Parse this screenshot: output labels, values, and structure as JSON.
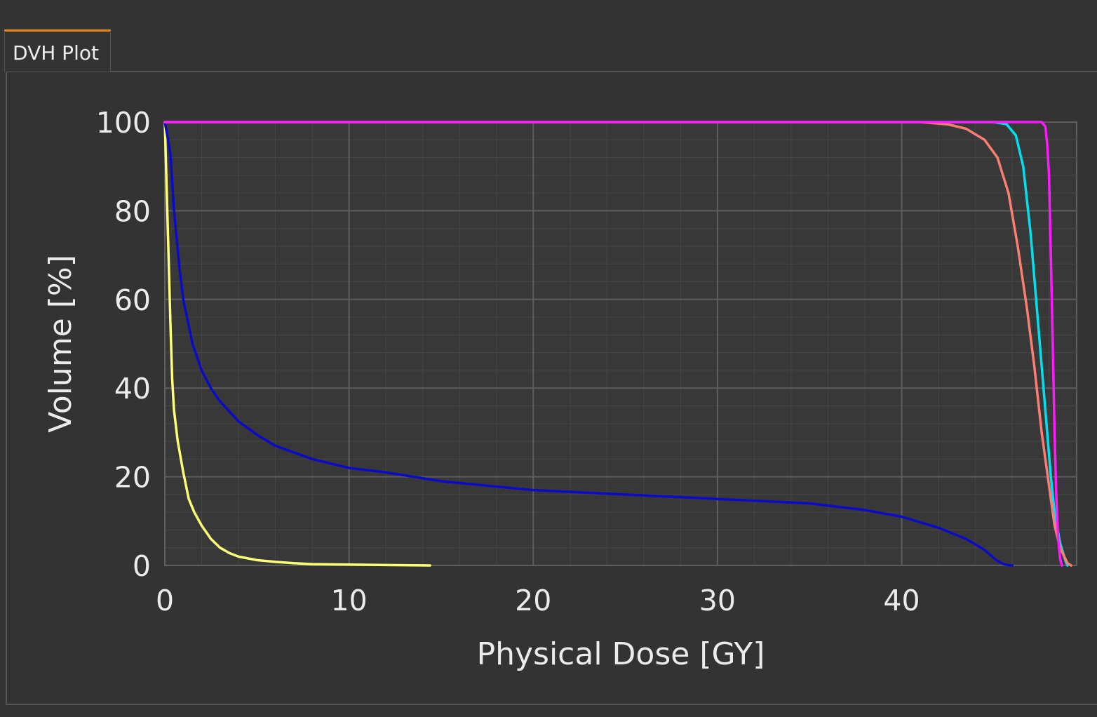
{
  "tab": {
    "label": "DVH Plot"
  },
  "colors": {
    "background": "#333333",
    "plot_bg": "#383838",
    "tab_accent": "#f08a1c",
    "grid_major": "#5e5e5e",
    "grid_minor": "#464646",
    "text": "#ececec"
  },
  "chart_data": {
    "type": "line",
    "title": "",
    "xlabel": "Physical Dose [GY]",
    "ylabel": "Volume [%]",
    "xlim": [
      0,
      49.5
    ],
    "ylim": [
      0,
      100
    ],
    "x_ticks": [
      0,
      10,
      20,
      30,
      40
    ],
    "y_ticks": [
      0,
      20,
      40,
      60,
      80,
      100
    ],
    "grid": true,
    "legend": "none",
    "series": [
      {
        "color": "#ffff77",
        "x": [
          0,
          0.1,
          0.2,
          0.3,
          0.4,
          0.5,
          0.7,
          1.0,
          1.3,
          1.6,
          2.0,
          2.5,
          3.0,
          3.5,
          4.0,
          5.0,
          6.0,
          7.0,
          8.0,
          10.0,
          12.0,
          14.4
        ],
        "y": [
          100,
          85,
          70,
          55,
          42,
          35,
          28,
          21,
          15,
          12,
          9,
          6,
          4,
          2.8,
          2,
          1.2,
          0.8,
          0.5,
          0.3,
          0.2,
          0.1,
          0
        ]
      },
      {
        "color": "#0a0ac8",
        "x": [
          0,
          0.3,
          0.5,
          0.8,
          1.0,
          1.5,
          2.0,
          2.5,
          3.0,
          4.0,
          5.0,
          6.0,
          8.0,
          10.0,
          12.0,
          15.0,
          20.0,
          25.0,
          30.0,
          35.0,
          38.0,
          40.0,
          42.0,
          43.5,
          44.5,
          45.2,
          45.6,
          46.0
        ],
        "y": [
          100,
          93,
          80,
          67,
          60,
          50,
          44,
          40,
          37,
          32.5,
          29.5,
          27,
          24,
          22,
          21,
          19,
          17,
          16,
          15,
          14,
          12.5,
          11,
          8.5,
          6,
          3.5,
          1,
          0.2,
          0
        ]
      },
      {
        "color": "#00e0ee",
        "x": [
          0,
          45.0,
          45.7,
          46.2,
          46.6,
          47.0,
          47.3,
          47.6,
          47.9,
          48.1,
          48.3,
          48.6,
          48.9,
          49.0
        ],
        "y": [
          100,
          100,
          99.5,
          97,
          90,
          75,
          60,
          45,
          30,
          20,
          12,
          5,
          1,
          0
        ]
      },
      {
        "color": "#fa7f72",
        "x": [
          0,
          41.0,
          42.5,
          43.5,
          44.5,
          45.2,
          45.8,
          46.3,
          46.8,
          47.2,
          47.6,
          48.0,
          48.3,
          48.6,
          49.0,
          49.2
        ],
        "y": [
          100,
          100,
          99.5,
          98.5,
          96,
          92,
          84,
          72,
          58,
          45,
          30,
          18,
          9,
          4,
          0.5,
          0
        ]
      },
      {
        "color": "#ff19ff",
        "x": [
          0,
          47.6,
          47.8,
          47.9,
          48.0,
          48.1,
          48.2,
          48.3,
          48.4,
          48.5,
          48.6,
          48.7
        ],
        "y": [
          100,
          100,
          99,
          95,
          88,
          70,
          50,
          30,
          15,
          6,
          1.5,
          0
        ]
      }
    ]
  }
}
